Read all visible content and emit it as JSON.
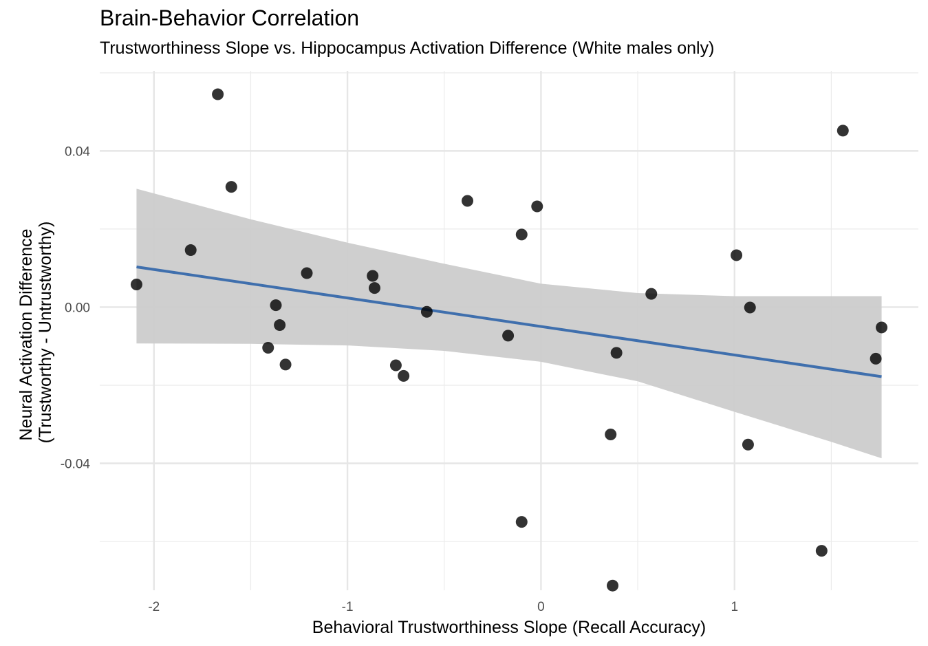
{
  "chart_data": {
    "type": "scatter",
    "title": "Brain-Behavior Correlation",
    "subtitle": "Trustworthiness Slope vs. Hippocampus Activation Difference (White males only)",
    "xlabel": "Behavioral Trustworthiness Slope (Recall Accuracy)",
    "ylabel": [
      "Neural Activation Difference",
      "(Trustworthy - Untrustworthy)"
    ],
    "xlim": [
      -2.28,
      1.95
    ],
    "ylim": [
      -0.0725,
      0.0605
    ],
    "x_ticks": [
      -2,
      -1,
      0,
      1
    ],
    "x_tick_labels": [
      "-2",
      "-1",
      "0",
      "1"
    ],
    "y_ticks": [
      -0.04,
      0.0,
      0.04
    ],
    "y_tick_labels": [
      "-0.04",
      "0.00",
      "0.04"
    ],
    "grid": true,
    "points": [
      {
        "x": -2.09,
        "y": 0.0058
      },
      {
        "x": -1.81,
        "y": 0.0146
      },
      {
        "x": -1.67,
        "y": 0.0545
      },
      {
        "x": -1.6,
        "y": 0.0308
      },
      {
        "x": -1.41,
        "y": -0.0104
      },
      {
        "x": -1.37,
        "y": 0.0005
      },
      {
        "x": -1.35,
        "y": -0.0046
      },
      {
        "x": -1.32,
        "y": -0.0147
      },
      {
        "x": -1.21,
        "y": 0.0087
      },
      {
        "x": -0.87,
        "y": 0.008
      },
      {
        "x": -0.86,
        "y": 0.0049
      },
      {
        "x": -0.75,
        "y": -0.0149
      },
      {
        "x": -0.71,
        "y": -0.0176
      },
      {
        "x": -0.59,
        "y": -0.0012
      },
      {
        "x": -0.38,
        "y": 0.0272
      },
      {
        "x": -0.17,
        "y": -0.0073
      },
      {
        "x": -0.1,
        "y": 0.0186
      },
      {
        "x": -0.1,
        "y": -0.055
      },
      {
        "x": -0.02,
        "y": 0.0258
      },
      {
        "x": 0.36,
        "y": -0.0326
      },
      {
        "x": 0.37,
        "y": -0.0713
      },
      {
        "x": 0.39,
        "y": -0.0117
      },
      {
        "x": 0.57,
        "y": 0.0034
      },
      {
        "x": 1.01,
        "y": 0.0133
      },
      {
        "x": 1.07,
        "y": -0.0352
      },
      {
        "x": 1.08,
        "y": -0.0001
      },
      {
        "x": 1.45,
        "y": -0.0624
      },
      {
        "x": 1.56,
        "y": 0.0452
      },
      {
        "x": 1.73,
        "y": -0.0132
      },
      {
        "x": 1.76,
        "y": -0.0052
      }
    ],
    "fit_line": {
      "x": [
        -2.09,
        1.76
      ],
      "y": [
        0.0103,
        -0.0178
      ],
      "color": "#3f6fad"
    },
    "confidence_band": {
      "x": [
        -2.09,
        -1.5,
        -1.0,
        -0.5,
        0.0,
        0.5,
        1.0,
        1.5,
        1.76
      ],
      "upper": [
        0.0303,
        0.0225,
        0.0165,
        0.0111,
        0.006,
        0.0036,
        0.0028,
        0.0028,
        0.0028
      ],
      "lower": [
        -0.0093,
        -0.0094,
        -0.0098,
        -0.0112,
        -0.014,
        -0.019,
        -0.0268,
        -0.0345,
        -0.0387
      ],
      "color": "#cccccc"
    },
    "point_color": "#000000",
    "grid_color": "#ebebeb"
  }
}
